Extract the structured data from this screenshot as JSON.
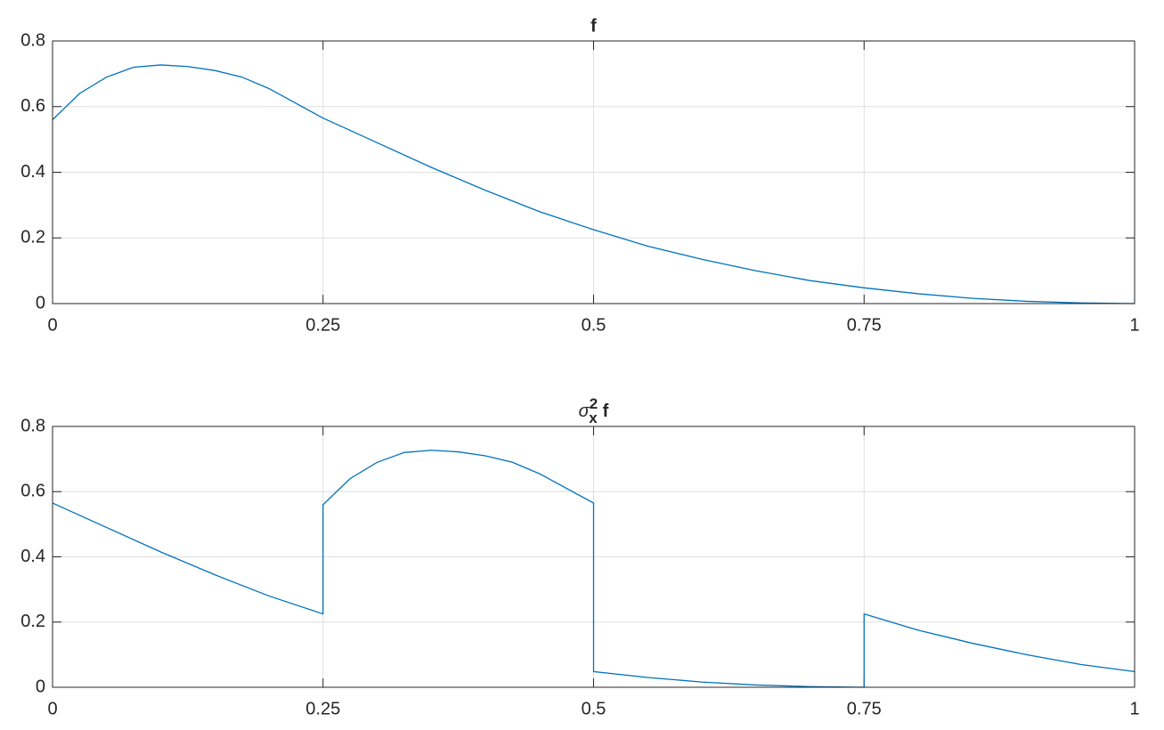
{
  "chart_data": [
    {
      "type": "line",
      "title": "f",
      "x": [
        0,
        0.025,
        0.05,
        0.075,
        0.1,
        0.125,
        0.15,
        0.175,
        0.2,
        0.25,
        0.3,
        0.35,
        0.4,
        0.45,
        0.5,
        0.55,
        0.6,
        0.65,
        0.7,
        0.75,
        0.8,
        0.85,
        0.9,
        0.95,
        1
      ],
      "values": [
        0.56,
        0.64,
        0.69,
        0.72,
        0.727,
        0.722,
        0.71,
        0.69,
        0.655,
        0.565,
        0.49,
        0.415,
        0.345,
        0.28,
        0.225,
        0.175,
        0.135,
        0.1,
        0.07,
        0.048,
        0.03,
        0.016,
        0.007,
        0.002,
        0
      ],
      "color": "#0072bd",
      "xlim": [
        0,
        1
      ],
      "ylim": [
        0,
        0.8
      ],
      "xticks": [
        0,
        0.25,
        0.5,
        0.75,
        1
      ],
      "yticks": [
        0,
        0.2,
        0.4,
        0.6,
        0.8
      ],
      "grid": true
    },
    {
      "type": "line",
      "title": {
        "base": "σ",
        "sub": "x",
        "sup": "2",
        "rest": "f"
      },
      "x": [
        0,
        0.05,
        0.1,
        0.15,
        0.2,
        0.25,
        0.25,
        0.275,
        0.3,
        0.325,
        0.35,
        0.375,
        0.4,
        0.425,
        0.45,
        0.5,
        0.5,
        0.55,
        0.6,
        0.65,
        0.7,
        0.75,
        0.75,
        0.8,
        0.85,
        0.9,
        0.95,
        1
      ],
      "values": [
        0.565,
        0.49,
        0.415,
        0.345,
        0.28,
        0.225,
        0.56,
        0.64,
        0.69,
        0.72,
        0.727,
        0.722,
        0.71,
        0.69,
        0.655,
        0.565,
        0.048,
        0.03,
        0.016,
        0.007,
        0.002,
        0,
        0.225,
        0.175,
        0.135,
        0.1,
        0.07,
        0.048
      ],
      "color": "#0072bd",
      "xlim": [
        0,
        1
      ],
      "ylim": [
        0,
        0.8
      ],
      "xticks": [
        0,
        0.25,
        0.5,
        0.75,
        1
      ],
      "yticks": [
        0,
        0.2,
        0.4,
        0.6,
        0.8
      ],
      "grid": true
    }
  ]
}
